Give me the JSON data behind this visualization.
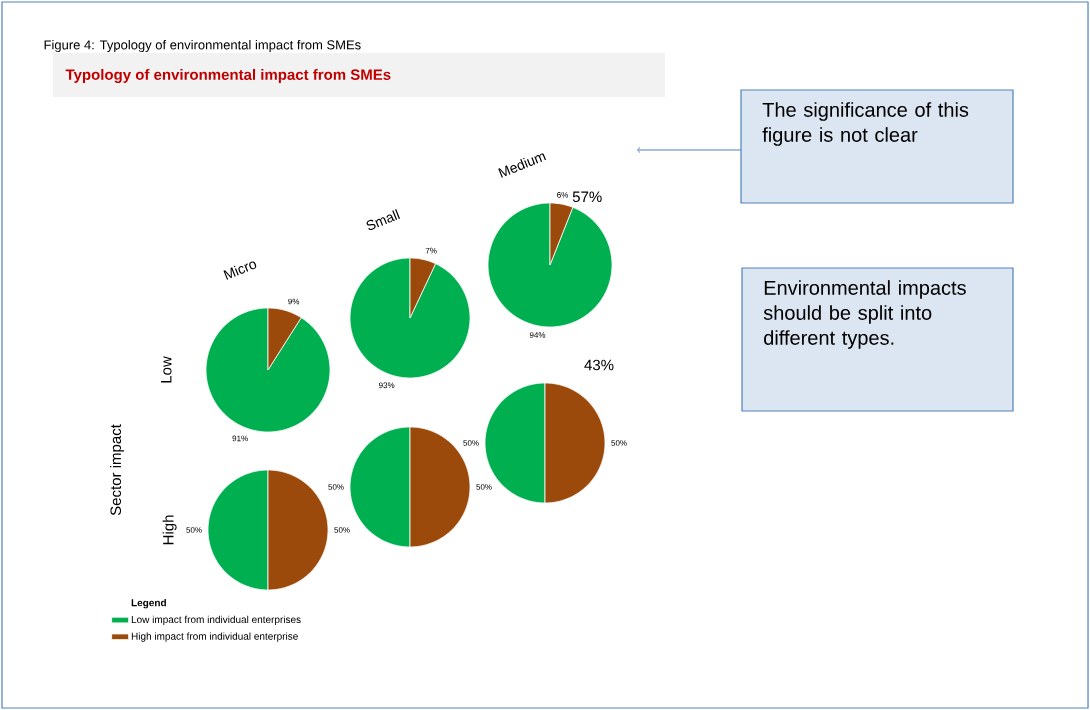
{
  "chart_data": [
    {
      "type": "pie",
      "title": "Micro",
      "ylabel": "Low",
      "categories": [
        null,
        null
      ],
      "values": [
        91,
        9
      ],
      "colors": [
        "#00b050",
        "#9c4a0c"
      ],
      "value_labels": [
        "91%",
        "9%"
      ],
      "annotations": [
        "Figure 4: Typology of environmental impact from SMEs",
        "Typology of environmental impact from SMEs",
        "The significance of this figure is not clear",
        "Environmental impacts should be split into different types.",
        "Sector impact"
      ]
    },
    {
      "type": "pie",
      "title": "Small",
      "categories": [
        null,
        null
      ],
      "values": [
        93,
        7
      ],
      "colors": [
        "#00b050",
        "#9c4a0c"
      ],
      "value_labels": [
        "93%",
        "7%"
      ]
    },
    {
      "type": "pie",
      "title": "Medium",
      "categories": [
        null,
        null
      ],
      "values": [
        94,
        6
      ],
      "colors": [
        "#00b050",
        "#9c4a0c"
      ],
      "value_labels": [
        "94%",
        "6%"
      ],
      "annotations": [
        "57%"
      ]
    },
    {
      "type": "pie",
      "ylabel": "High",
      "categories": [
        "Low impact from individual enterprises",
        "High impact from individual enterprise"
      ],
      "values": [
        50,
        50
      ],
      "colors": [
        "#00b050",
        "#9c4a0c"
      ],
      "value_labels": [
        "50%",
        "50%"
      ],
      "legend": "bottom left",
      "legend_title": "Legend"
    },
    {
      "type": "pie",
      "categories": [
        null,
        null
      ],
      "values": [
        50,
        50
      ],
      "colors": [
        "#00b050",
        "#9c4a0c"
      ],
      "value_labels": [
        "50%",
        "50%"
      ]
    },
    {
      "type": "pie",
      "categories": [
        null,
        null
      ],
      "values": [
        50,
        50
      ],
      "colors": [
        "#00b050",
        "#9c4a0c"
      ],
      "value_labels": [
        "50%",
        "50%"
      ],
      "annotations": [
        "43%"
      ]
    }
  ]
}
